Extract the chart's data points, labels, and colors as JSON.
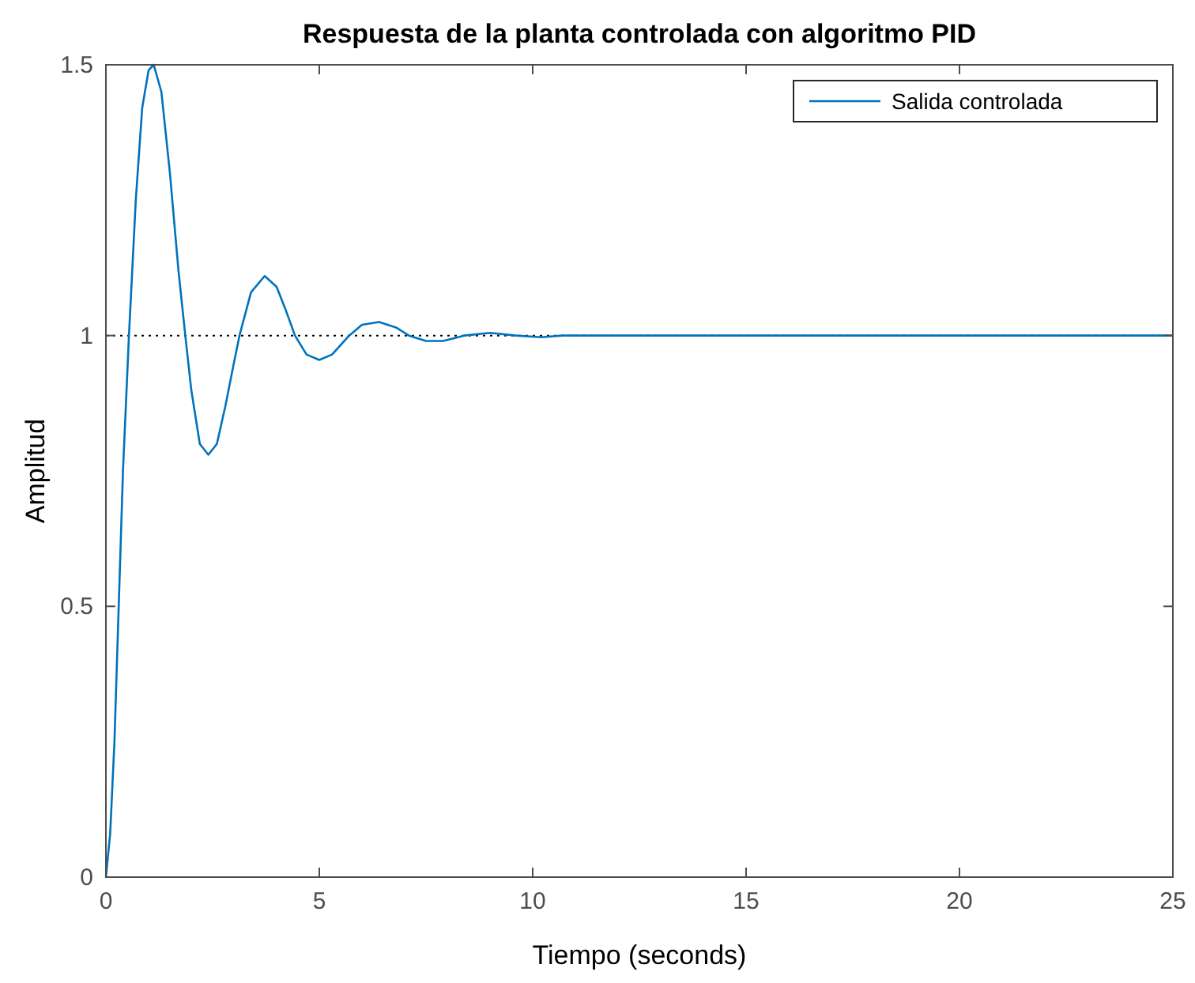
{
  "chart_data": {
    "type": "line",
    "title": "Respuesta de la planta controlada con algoritmo PID",
    "xlabel": "Tiempo (seconds)",
    "ylabel": "Amplitud",
    "series": [
      {
        "name": "Salida controlada",
        "color": "#0072bd",
        "x": [
          0,
          0.1,
          0.2,
          0.3,
          0.4,
          0.54,
          0.7,
          0.85,
          1.0,
          1.12,
          1.3,
          1.5,
          1.7,
          1.86,
          2.0,
          2.2,
          2.4,
          2.6,
          2.8,
          3.0,
          3.13,
          3.4,
          3.72,
          4.0,
          4.2,
          4.43,
          4.7,
          5.0,
          5.3,
          5.7,
          6.0,
          6.4,
          6.8,
          7.1,
          7.5,
          7.9,
          8.4,
          9.0,
          9.6,
          10.2,
          10.7,
          25
        ],
        "values": [
          0,
          0.08,
          0.25,
          0.5,
          0.75,
          1.0,
          1.25,
          1.42,
          1.49,
          1.5,
          1.45,
          1.3,
          1.12,
          1.0,
          0.9,
          0.8,
          0.78,
          0.8,
          0.87,
          0.95,
          1.0,
          1.08,
          1.11,
          1.09,
          1.05,
          1.0,
          0.965,
          0.955,
          0.965,
          1.0,
          1.02,
          1.025,
          1.015,
          1.0,
          0.99,
          0.99,
          1.0,
          1.005,
          1.0,
          0.997,
          1.0,
          1.0
        ]
      }
    ],
    "xlim": [
      0,
      25
    ],
    "xticks": [
      0,
      5,
      10,
      15,
      20,
      25
    ],
    "ylim": [
      0,
      1.5
    ],
    "yticks": [
      0,
      0.5,
      1,
      1.5
    ],
    "ref_lines": [
      {
        "axis": "y",
        "value": 1,
        "color": "#000000",
        "line_style": "dotted"
      }
    ],
    "legend": "top right",
    "grid": false,
    "marker": "none",
    "line_style": "solid"
  }
}
